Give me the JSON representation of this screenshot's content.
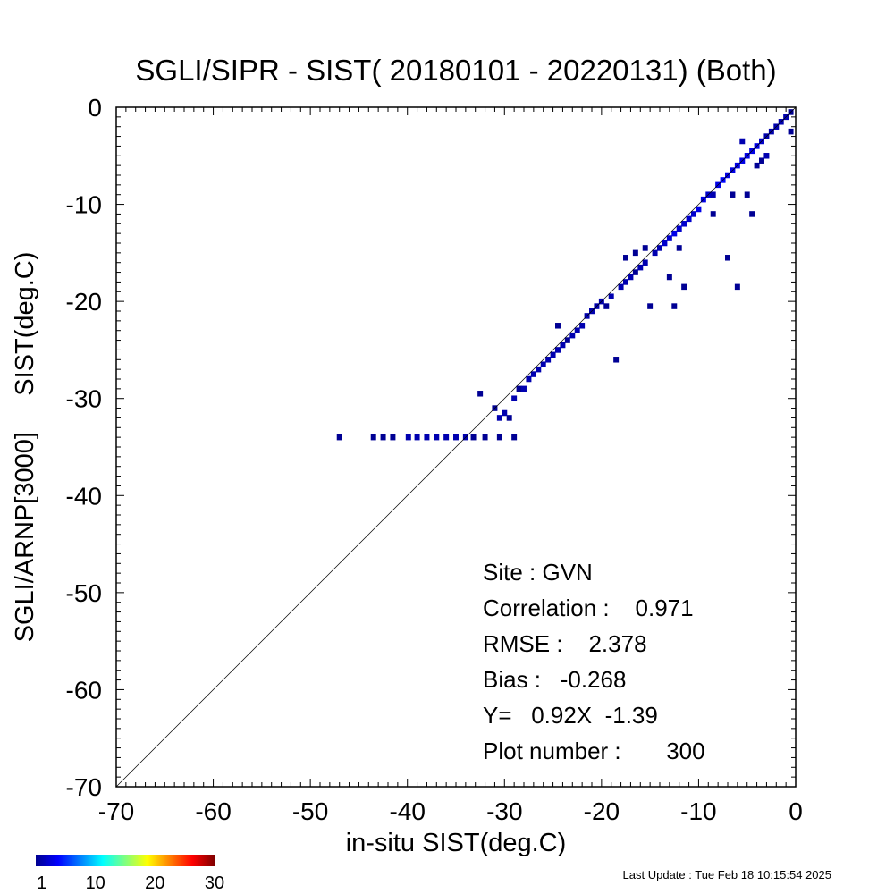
{
  "chart_data": {
    "type": "heatmap",
    "title": "SGLI/SIPR - SIST( 20180101 - 20220131) (Both)",
    "xlabel": "in-situ SIST(deg.C)",
    "ylabel": "SGLI/ARNP[3000]     SIST(deg.C)",
    "xlim": [
      -70,
      0
    ],
    "ylim": [
      -70,
      0
    ],
    "x_ticks": [
      -70,
      -60,
      -50,
      -40,
      -30,
      -20,
      -10,
      0
    ],
    "y_ticks": [
      -70,
      -60,
      -50,
      -40,
      -30,
      -20,
      -10,
      0
    ],
    "x_tick_labels": [
      "-70",
      "-60",
      "-50",
      "-40",
      "-30",
      "-20",
      "-10",
      "0"
    ],
    "y_tick_labels": [
      "-70",
      "-60",
      "-50",
      "-40",
      "-30",
      "-20",
      "-10",
      "0"
    ],
    "reference_line": "1:1",
    "colorbar": {
      "min": 1,
      "max": 30,
      "ticks": [
        "1",
        "10",
        "20",
        "30"
      ],
      "colormap": "jet"
    },
    "stats": {
      "site": "Site : GVN",
      "correlation": "Correlation :    0.971",
      "rmse": "RMSE :    2.378",
      "bias": "Bias :   -0.268",
      "fit": "Y=   0.92X  -1.39",
      "plot_number": "Plot number :       300"
    },
    "bins": [
      {
        "x": -47.0,
        "y": -34.0,
        "count": 1
      },
      {
        "x": -43.5,
        "y": -34.0,
        "count": 1
      },
      {
        "x": -42.5,
        "y": -34.0,
        "count": 1
      },
      {
        "x": -41.5,
        "y": -34.0,
        "count": 1
      },
      {
        "x": -39.9,
        "y": -34.0,
        "count": 2
      },
      {
        "x": -39.0,
        "y": -34.0,
        "count": 2
      },
      {
        "x": -38.0,
        "y": -34.0,
        "count": 2
      },
      {
        "x": -37.0,
        "y": -34.0,
        "count": 2
      },
      {
        "x": -36.0,
        "y": -34.0,
        "count": 2
      },
      {
        "x": -35.0,
        "y": -34.0,
        "count": 2
      },
      {
        "x": -34.0,
        "y": -34.0,
        "count": 2
      },
      {
        "x": -33.2,
        "y": -34.0,
        "count": 1
      },
      {
        "x": -32.0,
        "y": -34.0,
        "count": 1
      },
      {
        "x": -30.5,
        "y": -34.0,
        "count": 1
      },
      {
        "x": -29.0,
        "y": -34.0,
        "count": 1
      },
      {
        "x": -32.5,
        "y": -29.5,
        "count": 1
      },
      {
        "x": -31.0,
        "y": -31.0,
        "count": 1
      },
      {
        "x": -30.5,
        "y": -32.0,
        "count": 2
      },
      {
        "x": -30.0,
        "y": -31.5,
        "count": 2
      },
      {
        "x": -29.5,
        "y": -32.0,
        "count": 1
      },
      {
        "x": -29.0,
        "y": -30.0,
        "count": 2
      },
      {
        "x": -28.5,
        "y": -29.0,
        "count": 1
      },
      {
        "x": -28.0,
        "y": -29.0,
        "count": 2
      },
      {
        "x": -27.5,
        "y": -28.0,
        "count": 2
      },
      {
        "x": -27.0,
        "y": -27.5,
        "count": 2
      },
      {
        "x": -26.5,
        "y": -27.0,
        "count": 2
      },
      {
        "x": -26.0,
        "y": -26.5,
        "count": 2
      },
      {
        "x": -25.5,
        "y": -26.0,
        "count": 2
      },
      {
        "x": -25.0,
        "y": -25.5,
        "count": 2
      },
      {
        "x": -24.5,
        "y": -25.0,
        "count": 2
      },
      {
        "x": -24.0,
        "y": -24.5,
        "count": 2
      },
      {
        "x": -23.5,
        "y": -24.0,
        "count": 1
      },
      {
        "x": -24.5,
        "y": -22.5,
        "count": 1
      },
      {
        "x": -23.0,
        "y": -23.5,
        "count": 2
      },
      {
        "x": -22.5,
        "y": -23.0,
        "count": 2
      },
      {
        "x": -22.0,
        "y": -22.5,
        "count": 2
      },
      {
        "x": -21.5,
        "y": -21.5,
        "count": 2
      },
      {
        "x": -21.0,
        "y": -21.0,
        "count": 2
      },
      {
        "x": -20.5,
        "y": -20.5,
        "count": 2
      },
      {
        "x": -20.0,
        "y": -20.0,
        "count": 2
      },
      {
        "x": -19.5,
        "y": -20.5,
        "count": 1
      },
      {
        "x": -19.0,
        "y": -19.5,
        "count": 2
      },
      {
        "x": -18.5,
        "y": -26.0,
        "count": 1
      },
      {
        "x": -18.0,
        "y": -18.5,
        "count": 2
      },
      {
        "x": -17.5,
        "y": -18.0,
        "count": 2
      },
      {
        "x": -17.5,
        "y": -15.5,
        "count": 1
      },
      {
        "x": -17.0,
        "y": -17.5,
        "count": 2
      },
      {
        "x": -16.5,
        "y": -17.0,
        "count": 1
      },
      {
        "x": -16.5,
        "y": -15.0,
        "count": 1
      },
      {
        "x": -16.0,
        "y": -16.5,
        "count": 2
      },
      {
        "x": -15.5,
        "y": -16.0,
        "count": 2
      },
      {
        "x": -15.5,
        "y": -14.5,
        "count": 1
      },
      {
        "x": -15.0,
        "y": -20.5,
        "count": 1
      },
      {
        "x": -14.5,
        "y": -15.0,
        "count": 2
      },
      {
        "x": -14.0,
        "y": -14.5,
        "count": 2
      },
      {
        "x": -13.5,
        "y": -14.0,
        "count": 3
      },
      {
        "x": -13.0,
        "y": -13.5,
        "count": 3
      },
      {
        "x": -13.0,
        "y": -17.5,
        "count": 1
      },
      {
        "x": -12.5,
        "y": -13.0,
        "count": 4
      },
      {
        "x": -12.5,
        "y": -20.5,
        "count": 1
      },
      {
        "x": -12.0,
        "y": -12.5,
        "count": 3
      },
      {
        "x": -12.0,
        "y": -14.5,
        "count": 1
      },
      {
        "x": -11.5,
        "y": -12.0,
        "count": 3
      },
      {
        "x": -11.5,
        "y": -18.5,
        "count": 1
      },
      {
        "x": -11.0,
        "y": -11.5,
        "count": 3
      },
      {
        "x": -10.5,
        "y": -11.0,
        "count": 3
      },
      {
        "x": -10.0,
        "y": -10.5,
        "count": 4
      },
      {
        "x": -9.5,
        "y": -9.5,
        "count": 4
      },
      {
        "x": -9.0,
        "y": -9.0,
        "count": 3
      },
      {
        "x": -8.5,
        "y": -9.0,
        "count": 2
      },
      {
        "x": -8.5,
        "y": -11.0,
        "count": 1
      },
      {
        "x": -8.0,
        "y": -8.0,
        "count": 4
      },
      {
        "x": -7.5,
        "y": -7.5,
        "count": 5
      },
      {
        "x": -7.0,
        "y": -7.0,
        "count": 4
      },
      {
        "x": -7.0,
        "y": -15.5,
        "count": 1
      },
      {
        "x": -6.5,
        "y": -6.5,
        "count": 4
      },
      {
        "x": -6.5,
        "y": -9.0,
        "count": 1
      },
      {
        "x": -6.0,
        "y": -6.0,
        "count": 4
      },
      {
        "x": -6.0,
        "y": -18.5,
        "count": 1
      },
      {
        "x": -5.5,
        "y": -5.5,
        "count": 4
      },
      {
        "x": -5.5,
        "y": -3.5,
        "count": 2
      },
      {
        "x": -5.0,
        "y": -5.0,
        "count": 4
      },
      {
        "x": -5.0,
        "y": -9.0,
        "count": 1
      },
      {
        "x": -4.5,
        "y": -4.5,
        "count": 4
      },
      {
        "x": -4.5,
        "y": -11.0,
        "count": 1
      },
      {
        "x": -4.0,
        "y": -4.0,
        "count": 4
      },
      {
        "x": -4.0,
        "y": -6.0,
        "count": 1
      },
      {
        "x": -3.5,
        "y": -3.5,
        "count": 3
      },
      {
        "x": -3.5,
        "y": -5.5,
        "count": 1
      },
      {
        "x": -3.0,
        "y": -3.0,
        "count": 2
      },
      {
        "x": -3.0,
        "y": -5.0,
        "count": 2
      },
      {
        "x": -2.5,
        "y": -2.5,
        "count": 2
      },
      {
        "x": -2.0,
        "y": -2.0,
        "count": 2
      },
      {
        "x": -1.5,
        "y": -1.5,
        "count": 2
      },
      {
        "x": -1.0,
        "y": -1.0,
        "count": 2
      },
      {
        "x": -0.5,
        "y": -0.5,
        "count": 1
      },
      {
        "x": -0.5,
        "y": -2.5,
        "count": 1
      }
    ]
  },
  "footer": {
    "last_update": "Last Update : Tue Feb 18 10:15:54 2025"
  }
}
